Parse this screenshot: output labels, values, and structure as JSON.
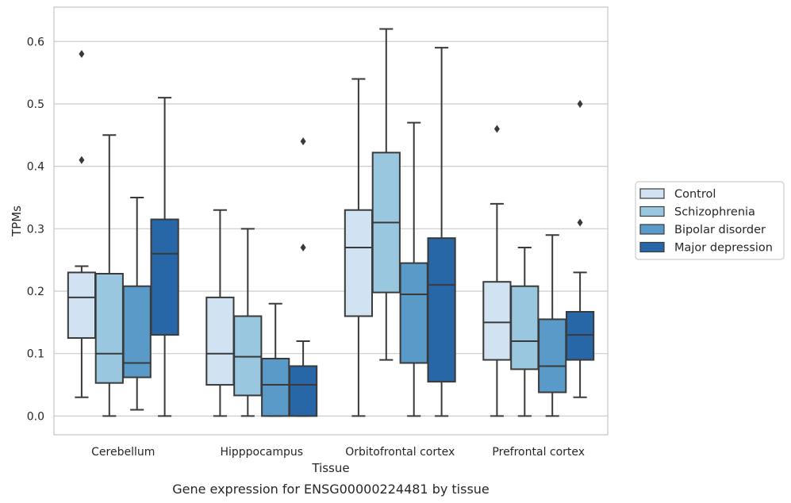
{
  "chart_data": {
    "type": "boxplot",
    "caption": "Gene expression for ENSG00000224481 by tissue",
    "xlabel": "Tissue",
    "ylabel": "TPMs",
    "ylim": [
      -0.03,
      0.655
    ],
    "yticks": [
      0.0,
      0.1,
      0.2,
      0.3,
      0.4,
      0.5,
      0.6
    ],
    "ytick_labels": [
      "0.0",
      "0.1",
      "0.2",
      "0.3",
      "0.4",
      "0.5",
      "0.6"
    ],
    "grid": "horizontal",
    "legend_position": "right",
    "categories": [
      "Cerebellum",
      "Hipppocampus",
      "Orbitofrontal cortex",
      "Prefrontal cortex"
    ],
    "series": [
      {
        "name": "Control",
        "color": "#d1e2f2",
        "boxes": [
          {
            "min": 0.03,
            "q1": 0.125,
            "median": 0.19,
            "q3": 0.23,
            "max": 0.24,
            "outliers": [
              0.41,
              0.58
            ]
          },
          {
            "min": 0.0,
            "q1": 0.05,
            "median": 0.1,
            "q3": 0.19,
            "max": 0.33,
            "outliers": []
          },
          {
            "min": 0.0,
            "q1": 0.16,
            "median": 0.27,
            "q3": 0.33,
            "max": 0.54,
            "outliers": []
          },
          {
            "min": 0.0,
            "q1": 0.09,
            "median": 0.15,
            "q3": 0.215,
            "max": 0.34,
            "outliers": [
              0.46
            ]
          }
        ]
      },
      {
        "name": "Schizophrenia",
        "color": "#9ac7e0",
        "boxes": [
          {
            "min": 0.0,
            "q1": 0.053,
            "median": 0.1,
            "q3": 0.228,
            "max": 0.45,
            "outliers": []
          },
          {
            "min": 0.0,
            "q1": 0.033,
            "median": 0.095,
            "q3": 0.16,
            "max": 0.3,
            "outliers": []
          },
          {
            "min": 0.09,
            "q1": 0.198,
            "median": 0.31,
            "q3": 0.422,
            "max": 0.62,
            "outliers": []
          },
          {
            "min": 0.0,
            "q1": 0.075,
            "median": 0.12,
            "q3": 0.208,
            "max": 0.27,
            "outliers": []
          }
        ]
      },
      {
        "name": "Bipolar disorder",
        "color": "#5a9ac8",
        "boxes": [
          {
            "min": 0.01,
            "q1": 0.062,
            "median": 0.085,
            "q3": 0.208,
            "max": 0.35,
            "outliers": []
          },
          {
            "min": 0.0,
            "q1": 0.0,
            "median": 0.05,
            "q3": 0.092,
            "max": 0.18,
            "outliers": []
          },
          {
            "min": 0.0,
            "q1": 0.085,
            "median": 0.195,
            "q3": 0.245,
            "max": 0.47,
            "outliers": []
          },
          {
            "min": 0.0,
            "q1": 0.038,
            "median": 0.08,
            "q3": 0.155,
            "max": 0.29,
            "outliers": []
          }
        ]
      },
      {
        "name": "Major depression",
        "color": "#2767a8",
        "boxes": [
          {
            "min": 0.0,
            "q1": 0.13,
            "median": 0.26,
            "q3": 0.315,
            "max": 0.51,
            "outliers": []
          },
          {
            "min": 0.0,
            "q1": 0.0,
            "median": 0.05,
            "q3": 0.08,
            "max": 0.12,
            "outliers": [
              0.27,
              0.44
            ]
          },
          {
            "min": 0.0,
            "q1": 0.055,
            "median": 0.21,
            "q3": 0.285,
            "max": 0.59,
            "outliers": []
          },
          {
            "min": 0.03,
            "q1": 0.09,
            "median": 0.13,
            "q3": 0.167,
            "max": 0.23,
            "outliers": [
              0.31,
              0.5
            ]
          }
        ]
      }
    ]
  }
}
